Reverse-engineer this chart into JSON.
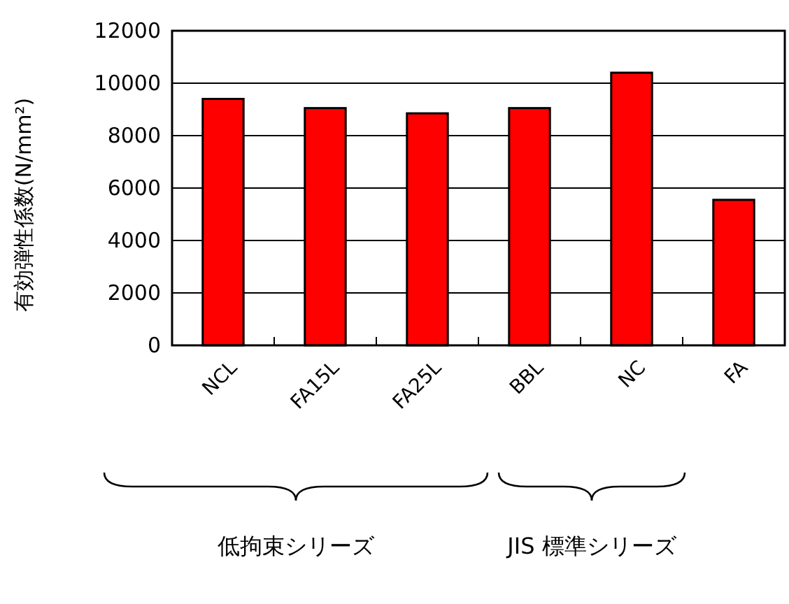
{
  "chart_data": {
    "type": "bar",
    "ylabel": "有効弾性係数(N/mm²)",
    "categories": [
      "NCL",
      "FA15L",
      "FA25L",
      "BBL",
      "NC",
      "FA"
    ],
    "values": [
      9400,
      9050,
      8850,
      9050,
      10400,
      5550
    ],
    "color": "#ff0000",
    "ylim": [
      0,
      12000
    ],
    "yticks": [
      0,
      2000,
      4000,
      6000,
      8000,
      10000,
      12000
    ],
    "grid": "y",
    "annotations": [
      "低拘束シリーズ",
      "JIS 標準シリーズ"
    ]
  }
}
